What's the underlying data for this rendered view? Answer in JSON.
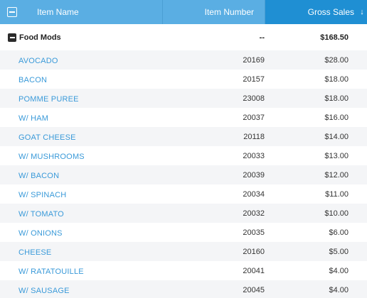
{
  "header": {
    "name_label": "Item Name",
    "number_label": "Item Number",
    "sales_label": "Gross Sales",
    "sort_icon": "arrow-down-icon",
    "sort_glyph": "↓"
  },
  "group": {
    "name": "Food Mods",
    "number": "--",
    "sales": "$168.50"
  },
  "rows": [
    {
      "name": "AVOCADO",
      "number": "20169",
      "sales": "$28.00"
    },
    {
      "name": "BACON",
      "number": "20157",
      "sales": "$18.00"
    },
    {
      "name": "POMME PUREE",
      "number": "23008",
      "sales": "$18.00"
    },
    {
      "name": "W/ HAM",
      "number": "20037",
      "sales": "$16.00"
    },
    {
      "name": "GOAT CHEESE",
      "number": "20118",
      "sales": "$14.00"
    },
    {
      "name": "W/ MUSHROOMS",
      "number": "20033",
      "sales": "$13.00"
    },
    {
      "name": "W/ BACON",
      "number": "20039",
      "sales": "$12.00"
    },
    {
      "name": "W/ SPINACH",
      "number": "20034",
      "sales": "$11.00"
    },
    {
      "name": "W/ TOMATO",
      "number": "20032",
      "sales": "$10.00"
    },
    {
      "name": "W/ ONIONS",
      "number": "20035",
      "sales": "$6.00"
    },
    {
      "name": "CHEESE",
      "number": "20160",
      "sales": "$5.00"
    },
    {
      "name": "W/ RATATOUILLE",
      "number": "20041",
      "sales": "$4.00"
    },
    {
      "name": "W/ SAUSAGE",
      "number": "20045",
      "sales": "$4.00"
    }
  ],
  "colors": {
    "header_bg": "#5aaee3",
    "sorted_header_bg": "#1f8fd3",
    "link": "#3a9ad9",
    "alt_row": "#f4f5f7"
  }
}
